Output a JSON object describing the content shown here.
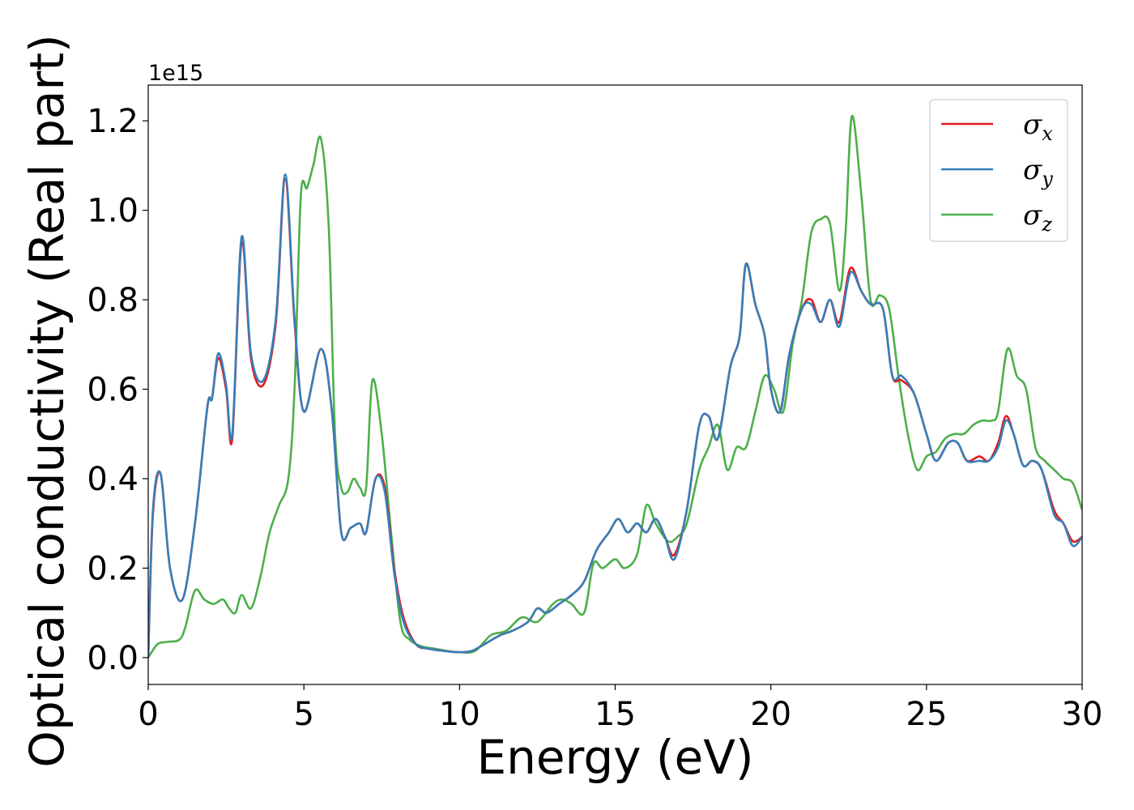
{
  "chart_data": {
    "type": "line",
    "xlabel": "Energy (eV)",
    "ylabel": "Optical conductivity (Real part)",
    "y_offset_text": "1e15",
    "y_scale": 1000000000000000.0,
    "xlim": [
      0,
      30
    ],
    "ylim": [
      -0.06,
      1.28
    ],
    "xticks": [
      0,
      5,
      10,
      15,
      20,
      25,
      30
    ],
    "xtick_labels": [
      "0",
      "5",
      "10",
      "15",
      "20",
      "25",
      "30"
    ],
    "yticks": [
      0.0,
      0.2,
      0.4,
      0.6,
      0.8,
      1.0,
      1.2
    ],
    "ytick_labels": [
      "0.0",
      "0.2",
      "0.4",
      "0.6",
      "0.8",
      "1.0",
      "1.2"
    ],
    "grid": false,
    "legend_position": "top-right",
    "series": [
      {
        "name": "σx",
        "legend_base": "σ",
        "legend_sub": "x",
        "color": "#e41a1c",
        "x": [
          0,
          0.15,
          0.4,
          0.7,
          1.1,
          1.5,
          1.9,
          2.05,
          2.25,
          2.5,
          2.7,
          3.0,
          3.3,
          3.7,
          4.1,
          4.4,
          4.7,
          5.0,
          5.55,
          5.9,
          6.2,
          6.5,
          6.8,
          7.0,
          7.3,
          7.6,
          7.9,
          8.2,
          8.6,
          9.0,
          9.5,
          10.0,
          10.4,
          10.8,
          11.3,
          11.7,
          12.2,
          12.5,
          12.8,
          13.2,
          13.6,
          14.0,
          14.4,
          14.8,
          15.1,
          15.4,
          15.7,
          16.0,
          16.3,
          16.6,
          16.9,
          17.3,
          17.7,
          18.0,
          18.3,
          18.7,
          19.0,
          19.2,
          19.5,
          19.8,
          20.0,
          20.3,
          20.6,
          21.0,
          21.3,
          21.6,
          21.9,
          22.2,
          22.55,
          22.9,
          23.2,
          23.6,
          23.9,
          24.2,
          24.6,
          25.0,
          25.3,
          25.7,
          26.0,
          26.3,
          26.7,
          27.0,
          27.3,
          27.55,
          27.8,
          28.1,
          28.4,
          28.7,
          29.1,
          29.4,
          29.7,
          30.0
        ],
        "y": [
          0.0,
          0.32,
          0.41,
          0.2,
          0.13,
          0.3,
          0.56,
          0.58,
          0.67,
          0.6,
          0.49,
          0.93,
          0.67,
          0.61,
          0.75,
          1.07,
          0.75,
          0.55,
          0.69,
          0.55,
          0.28,
          0.29,
          0.3,
          0.28,
          0.4,
          0.38,
          0.2,
          0.09,
          0.03,
          0.02,
          0.015,
          0.012,
          0.015,
          0.03,
          0.05,
          0.06,
          0.08,
          0.11,
          0.1,
          0.12,
          0.14,
          0.17,
          0.24,
          0.28,
          0.31,
          0.28,
          0.3,
          0.28,
          0.31,
          0.27,
          0.23,
          0.33,
          0.52,
          0.54,
          0.49,
          0.65,
          0.72,
          0.88,
          0.79,
          0.72,
          0.6,
          0.55,
          0.68,
          0.78,
          0.8,
          0.75,
          0.8,
          0.75,
          0.87,
          0.82,
          0.79,
          0.78,
          0.63,
          0.62,
          0.59,
          0.5,
          0.44,
          0.48,
          0.48,
          0.44,
          0.45,
          0.44,
          0.48,
          0.54,
          0.5,
          0.43,
          0.44,
          0.42,
          0.33,
          0.3,
          0.26,
          0.27
        ]
      },
      {
        "name": "σy",
        "legend_base": "σ",
        "legend_sub": "y",
        "color": "#377eb8",
        "x": [
          0,
          0.15,
          0.4,
          0.7,
          1.1,
          1.5,
          1.9,
          2.05,
          2.25,
          2.5,
          2.7,
          3.0,
          3.3,
          3.7,
          4.1,
          4.4,
          4.7,
          5.0,
          5.55,
          5.9,
          6.2,
          6.5,
          6.8,
          7.0,
          7.3,
          7.6,
          7.9,
          8.2,
          8.6,
          9.0,
          9.5,
          10.0,
          10.4,
          10.8,
          11.3,
          11.7,
          12.2,
          12.5,
          12.8,
          13.2,
          13.6,
          14.0,
          14.4,
          14.8,
          15.1,
          15.4,
          15.7,
          16.0,
          16.3,
          16.6,
          16.9,
          17.3,
          17.7,
          18.0,
          18.3,
          18.7,
          19.0,
          19.2,
          19.5,
          19.8,
          20.0,
          20.3,
          20.6,
          21.0,
          21.3,
          21.6,
          21.9,
          22.2,
          22.55,
          22.9,
          23.2,
          23.6,
          23.9,
          24.2,
          24.6,
          25.0,
          25.3,
          25.7,
          26.0,
          26.3,
          26.7,
          27.0,
          27.3,
          27.55,
          27.8,
          28.1,
          28.4,
          28.7,
          29.1,
          29.4,
          29.7,
          30.0
        ],
        "y": [
          0.0,
          0.33,
          0.41,
          0.2,
          0.13,
          0.3,
          0.56,
          0.58,
          0.68,
          0.61,
          0.5,
          0.94,
          0.68,
          0.62,
          0.76,
          1.08,
          0.76,
          0.55,
          0.69,
          0.55,
          0.28,
          0.29,
          0.3,
          0.28,
          0.4,
          0.37,
          0.19,
          0.08,
          0.03,
          0.02,
          0.015,
          0.012,
          0.015,
          0.03,
          0.05,
          0.06,
          0.08,
          0.11,
          0.1,
          0.12,
          0.14,
          0.17,
          0.24,
          0.28,
          0.31,
          0.28,
          0.3,
          0.28,
          0.31,
          0.27,
          0.22,
          0.33,
          0.52,
          0.54,
          0.49,
          0.65,
          0.72,
          0.88,
          0.79,
          0.72,
          0.6,
          0.55,
          0.68,
          0.78,
          0.79,
          0.75,
          0.8,
          0.74,
          0.86,
          0.82,
          0.79,
          0.78,
          0.63,
          0.63,
          0.59,
          0.5,
          0.44,
          0.48,
          0.48,
          0.44,
          0.44,
          0.44,
          0.47,
          0.53,
          0.5,
          0.43,
          0.44,
          0.42,
          0.32,
          0.3,
          0.25,
          0.27
        ]
      },
      {
        "name": "σz",
        "legend_base": "σ",
        "legend_sub": "z",
        "color": "#4daf4a",
        "x": [
          0,
          0.3,
          0.6,
          1.0,
          1.2,
          1.5,
          1.8,
          2.1,
          2.4,
          2.6,
          2.8,
          3.0,
          3.3,
          3.6,
          3.9,
          4.2,
          4.5,
          4.7,
          4.9,
          5.1,
          5.3,
          5.55,
          5.8,
          6.0,
          6.2,
          6.4,
          6.6,
          6.8,
          7.0,
          7.2,
          7.5,
          7.8,
          8.1,
          8.4,
          8.8,
          9.2,
          9.6,
          10.0,
          10.5,
          11.0,
          11.5,
          12.0,
          12.5,
          13.0,
          13.3,
          13.6,
          14.0,
          14.3,
          14.6,
          15.0,
          15.3,
          15.7,
          16.0,
          16.3,
          16.7,
          17.0,
          17.3,
          17.7,
          18.0,
          18.3,
          18.6,
          18.9,
          19.2,
          19.5,
          19.8,
          20.1,
          20.4,
          20.7,
          21.0,
          21.3,
          21.6,
          21.9,
          22.2,
          22.4,
          22.6,
          22.9,
          23.2,
          23.5,
          23.8,
          24.1,
          24.4,
          24.7,
          25.0,
          25.3,
          25.6,
          25.9,
          26.2,
          26.5,
          26.8,
          27.1,
          27.3,
          27.6,
          27.9,
          28.2,
          28.5,
          28.8,
          29.1,
          29.4,
          29.7,
          30.0
        ],
        "y": [
          0.0,
          0.03,
          0.035,
          0.04,
          0.07,
          0.15,
          0.13,
          0.12,
          0.13,
          0.11,
          0.1,
          0.14,
          0.11,
          0.18,
          0.28,
          0.34,
          0.4,
          0.6,
          1.03,
          1.05,
          1.1,
          1.16,
          0.96,
          0.5,
          0.38,
          0.37,
          0.4,
          0.38,
          0.38,
          0.62,
          0.5,
          0.28,
          0.08,
          0.04,
          0.025,
          0.02,
          0.015,
          0.012,
          0.015,
          0.05,
          0.06,
          0.09,
          0.08,
          0.12,
          0.13,
          0.12,
          0.1,
          0.21,
          0.2,
          0.22,
          0.2,
          0.23,
          0.34,
          0.3,
          0.26,
          0.27,
          0.3,
          0.42,
          0.47,
          0.52,
          0.42,
          0.47,
          0.47,
          0.55,
          0.63,
          0.6,
          0.55,
          0.7,
          0.8,
          0.95,
          0.98,
          0.97,
          0.82,
          0.95,
          1.21,
          1.04,
          0.8,
          0.81,
          0.78,
          0.63,
          0.5,
          0.42,
          0.45,
          0.46,
          0.49,
          0.5,
          0.5,
          0.52,
          0.53,
          0.53,
          0.55,
          0.69,
          0.63,
          0.6,
          0.47,
          0.44,
          0.42,
          0.4,
          0.39,
          0.33
        ]
      }
    ]
  }
}
